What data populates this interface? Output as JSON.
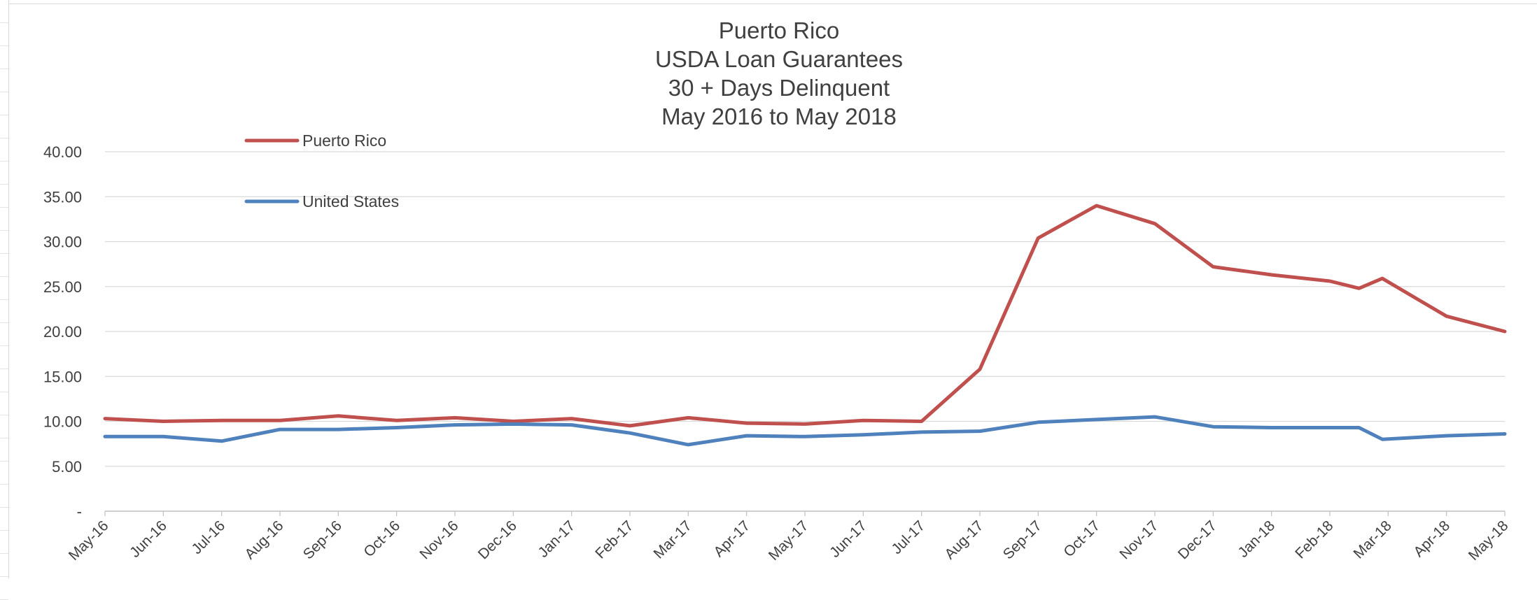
{
  "chart_data": {
    "type": "line",
    "title_lines": [
      "Puerto Rico",
      "USDA Loan Guarantees",
      "30 + Days Delinquent",
      "May 2016 to May 2018"
    ],
    "xlabel": "",
    "ylabel": "",
    "ylim": [
      0,
      40
    ],
    "y_ticks": [
      0,
      5,
      10,
      15,
      20,
      25,
      30,
      35,
      40
    ],
    "y_tick_labels": [
      "-",
      "5.00",
      "10.00",
      "15.00",
      "20.00",
      "25.00",
      "30.00",
      "35.00",
      "40.00"
    ],
    "grid": true,
    "legend_position": "top-left",
    "categories": [
      "May-16",
      "Jun-16",
      "Jul-16",
      "Aug-16",
      "Sep-16",
      "Oct-16",
      "Nov-16",
      "Dec-16",
      "Jan-17",
      "Feb-17",
      "Mar-17",
      "Apr-17",
      "May-17",
      "Jun-17",
      "Jul-17",
      "Aug-17",
      "Sep-17",
      "Oct-17",
      "Nov-17",
      "Dec-17",
      "Jan-18",
      "Feb-18",
      "Mar-18",
      "Apr-18",
      "May-18"
    ],
    "series": [
      {
        "name": "Puerto Rico",
        "color": "#c0504d",
        "points": [
          {
            "x": "May-16",
            "y": 10.3
          },
          {
            "x": "Jun-16",
            "y": 10.0
          },
          {
            "x": "Jul-16",
            "y": 10.1
          },
          {
            "x": "Aug-16",
            "y": 10.1
          },
          {
            "x": "Sep-16",
            "y": 10.6
          },
          {
            "x": "Oct-16",
            "y": 10.1
          },
          {
            "x": "Nov-16",
            "y": 10.4
          },
          {
            "x": "Dec-16",
            "y": 10.0
          },
          {
            "x": "Jan-17",
            "y": 10.3
          },
          {
            "x": "Feb-17",
            "y": 9.5
          },
          {
            "x": "Mar-17",
            "y": 10.4
          },
          {
            "x": "Apr-17",
            "y": 9.8
          },
          {
            "x": "May-17",
            "y": 9.7
          },
          {
            "x": "Jun-17",
            "y": 10.1
          },
          {
            "x": "Jul-17",
            "y": 10.0
          },
          {
            "x": "Aug-17",
            "y": 15.8
          },
          {
            "x": "Sep-17",
            "y": 30.4
          },
          {
            "x": "Oct-17",
            "y": 34.0
          },
          {
            "x": "Nov-17",
            "y": 32.0
          },
          {
            "x": "Dec-17",
            "y": 27.2
          },
          {
            "x": "Jan-18",
            "y": 26.3
          },
          {
            "x": "Feb-18",
            "y": 25.6
          },
          {
            "x": "Mar-18 (early)",
            "xi": 21.5,
            "y": 24.8
          },
          {
            "x": "Mar-18",
            "xi": 21.9,
            "y": 25.9
          },
          {
            "x": "Apr-18",
            "y": 21.7
          },
          {
            "x": "May-18",
            "y": 20.0
          }
        ]
      },
      {
        "name": "United States",
        "color": "#4f81bd",
        "points": [
          {
            "x": "May-16",
            "y": 8.3
          },
          {
            "x": "Jun-16",
            "y": 8.3
          },
          {
            "x": "Jul-16",
            "y": 7.8
          },
          {
            "x": "Aug-16",
            "y": 9.1
          },
          {
            "x": "Sep-16",
            "y": 9.1
          },
          {
            "x": "Oct-16",
            "y": 9.3
          },
          {
            "x": "Nov-16",
            "y": 9.6
          },
          {
            "x": "Dec-16",
            "y": 9.7
          },
          {
            "x": "Jan-17",
            "y": 9.6
          },
          {
            "x": "Feb-17",
            "y": 8.7
          },
          {
            "x": "Mar-17",
            "y": 7.4
          },
          {
            "x": "Apr-17",
            "y": 8.4
          },
          {
            "x": "May-17",
            "y": 8.3
          },
          {
            "x": "Jun-17",
            "y": 8.5
          },
          {
            "x": "Jul-17",
            "y": 8.8
          },
          {
            "x": "Aug-17",
            "y": 8.9
          },
          {
            "x": "Sep-17",
            "y": 9.9
          },
          {
            "x": "Oct-17",
            "y": 10.2
          },
          {
            "x": "Nov-17",
            "y": 10.5
          },
          {
            "x": "Dec-17",
            "y": 9.4
          },
          {
            "x": "Jan-18",
            "y": 9.3
          },
          {
            "x": "Feb-18",
            "y": 9.3
          },
          {
            "x": "Mar-18 (early)",
            "xi": 21.5,
            "y": 9.3
          },
          {
            "x": "Mar-18",
            "xi": 21.9,
            "y": 8.0
          },
          {
            "x": "Apr-18",
            "y": 8.4
          },
          {
            "x": "May-18",
            "y": 8.6
          }
        ]
      }
    ]
  }
}
